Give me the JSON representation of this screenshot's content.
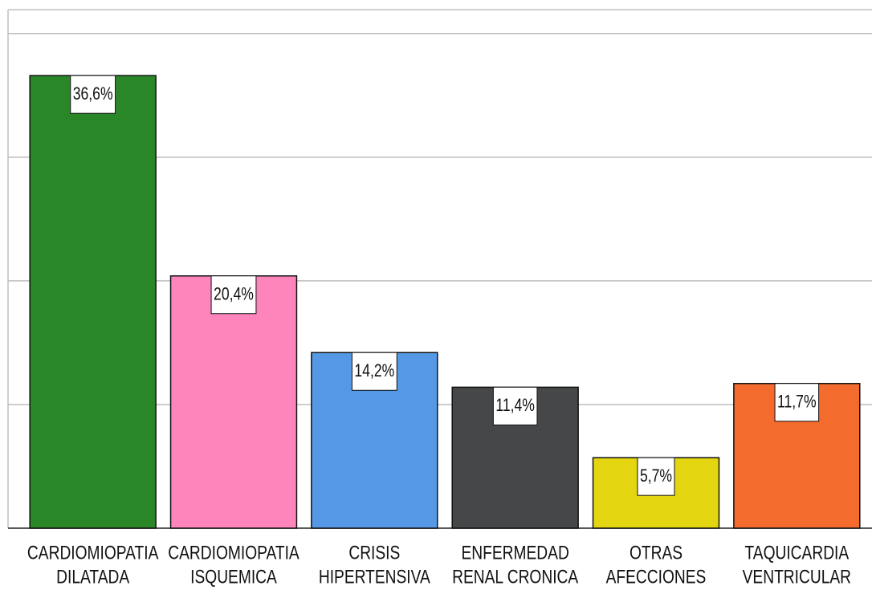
{
  "chart_data": {
    "type": "bar",
    "categories": [
      [
        "CARDIOMIOPATIA",
        "DILATADA"
      ],
      [
        "CARDIOMIOPATIA",
        "ISQUEMICA"
      ],
      [
        "CRISIS",
        "HIPERTENSIVA"
      ],
      [
        "ENFERMEDAD",
        "RENAL CRONICA"
      ],
      [
        "OTRAS",
        "AFECCIONES"
      ],
      [
        "TAQUICARDIA",
        "VENTRICULAR"
      ]
    ],
    "values": [
      36.6,
      20.4,
      14.2,
      11.4,
      5.7,
      11.7
    ],
    "value_labels": [
      "36,6%",
      "20,4%",
      "14,2%",
      "11,4%",
      "5,7%",
      "11,7%"
    ],
    "colors": [
      "#2a8728",
      "#fe85bb",
      "#5599e6",
      "#464749",
      "#e3d611",
      "#f36b2d"
    ],
    "ylim": [
      0,
      42
    ],
    "yticks": [
      0,
      10,
      20,
      30,
      40
    ],
    "grid": true
  }
}
